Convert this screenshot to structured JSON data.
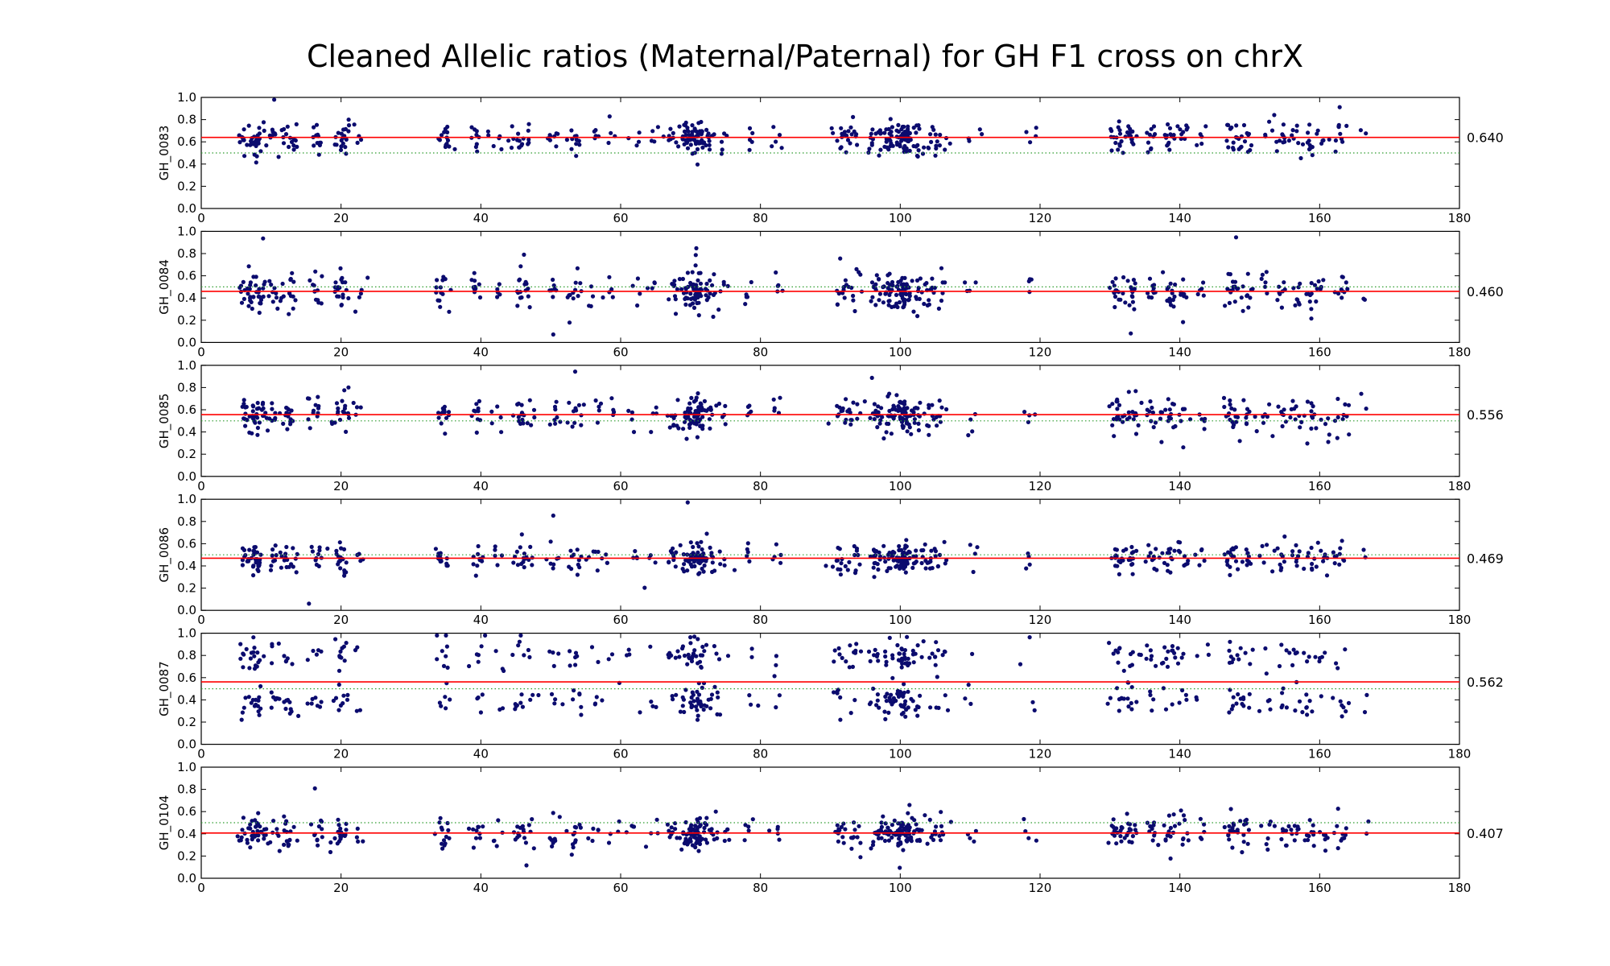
{
  "chart_data": {
    "type": "scatter",
    "title": "Cleaned Allelic ratios (Maternal/Paternal) for GH F1 cross on chrX",
    "xlim": [
      0,
      180
    ],
    "ylim": [
      0,
      1
    ],
    "x_ticks": [
      "0",
      "20",
      "40",
      "60",
      "80",
      "100",
      "120",
      "140",
      "160",
      "180"
    ],
    "y_ticks": [
      "0.0",
      "0.2",
      "0.4",
      "0.6",
      "0.8",
      "1.0"
    ],
    "reference_line": 0.5,
    "colors": {
      "points": "#0b0b6e",
      "mean_line": "#ff0000",
      "reference_line": "#2e9c2e"
    },
    "panels": [
      {
        "name": "GH_0083",
        "mean": 0.64,
        "mean_label": "0.640",
        "spread": 0.07,
        "bimodal": false
      },
      {
        "name": "GH_0084",
        "mean": 0.46,
        "mean_label": "0.460",
        "spread": 0.08,
        "bimodal": false
      },
      {
        "name": "GH_0085",
        "mean": 0.556,
        "mean_label": "0.556",
        "spread": 0.08,
        "bimodal": false
      },
      {
        "name": "GH_0086",
        "mean": 0.469,
        "mean_label": "0.469",
        "spread": 0.07,
        "bimodal": false
      },
      {
        "name": "GH_0087",
        "mean": 0.562,
        "mean_label": "0.562",
        "spread": 0.07,
        "bimodal": true,
        "modes": [
          0.38,
          0.8
        ]
      },
      {
        "name": "GH_0104",
        "mean": 0.407,
        "mean_label": "0.407",
        "spread": 0.07,
        "bimodal": false
      }
    ],
    "snp_clusters": [
      [
        6.5,
        14
      ],
      [
        8,
        24
      ],
      [
        10.5,
        10
      ],
      [
        12.5,
        14
      ],
      [
        16.5,
        12
      ],
      [
        20,
        20
      ],
      [
        22.5,
        4
      ],
      [
        34.5,
        14
      ],
      [
        39.5,
        10
      ],
      [
        42.5,
        5
      ],
      [
        45.5,
        12
      ],
      [
        47,
        5
      ],
      [
        50.5,
        8
      ],
      [
        53.5,
        12
      ],
      [
        56.5,
        5
      ],
      [
        58.5,
        4
      ],
      [
        62,
        4
      ],
      [
        64.5,
        4
      ],
      [
        67.5,
        10
      ],
      [
        69.5,
        18
      ],
      [
        71,
        40
      ],
      [
        73,
        10
      ],
      [
        75,
        5
      ],
      [
        78.5,
        5
      ],
      [
        82.5,
        5
      ],
      [
        91.5,
        12
      ],
      [
        93.5,
        10
      ],
      [
        96.5,
        16
      ],
      [
        98.5,
        20
      ],
      [
        100.5,
        45
      ],
      [
        102.5,
        14
      ],
      [
        104.5,
        10
      ],
      [
        106,
        6
      ],
      [
        110,
        4
      ],
      [
        118.5,
        4
      ],
      [
        131,
        16
      ],
      [
        133,
        14
      ],
      [
        136,
        10
      ],
      [
        138.5,
        14
      ],
      [
        140.5,
        8
      ],
      [
        143,
        5
      ],
      [
        147.5,
        16
      ],
      [
        149.5,
        10
      ],
      [
        152.5,
        6
      ],
      [
        154.5,
        8
      ],
      [
        156.5,
        8
      ],
      [
        158.5,
        10
      ],
      [
        160.5,
        6
      ],
      [
        163,
        10
      ],
      [
        166.5,
        2
      ]
    ]
  }
}
